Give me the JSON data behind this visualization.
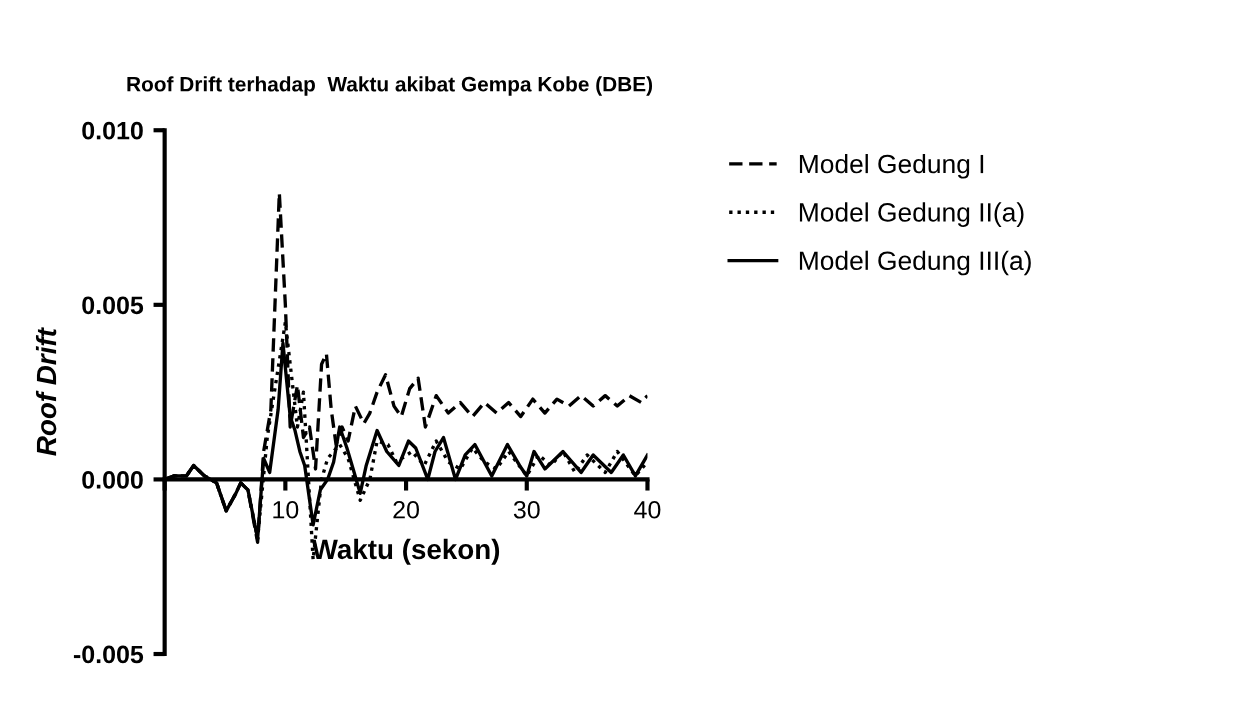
{
  "chart_data": {
    "type": "line",
    "title": "Roof Drift terhadap  Waktu akibat Gempa Kobe (DBE)",
    "xlabel": "Waktu (sekon)",
    "ylabel": "Roof Drift",
    "xlim": [
      0,
      40
    ],
    "xticks": [
      {
        "value": 0,
        "label": null
      },
      10,
      20,
      30,
      40
    ],
    "ylim": [
      -0.005,
      0.01
    ],
    "yticks": [
      {
        "value": -0.005,
        "label": "-0.005"
      },
      {
        "value": 0.0,
        "label": "0.000"
      },
      {
        "value": 0.005,
        "label": "0.005"
      },
      {
        "value": 0.01,
        "label": "0.010"
      }
    ],
    "grid": false,
    "legend": "top right",
    "marker": "none",
    "series": [
      {
        "name": "Model Gedung I",
        "color": "#000000",
        "line_style": "dashed",
        "x": [
          0,
          0.8,
          1.2,
          1.8,
          2.4,
          3.3,
          4.3,
          5.1,
          5.9,
          6.3,
          6.9,
          7.7,
          8.2,
          8.8,
          9.5,
          10.0,
          10.4,
          11.0,
          11.5,
          12.0,
          12.5,
          13.0,
          13.4,
          13.8,
          14.2,
          14.7,
          15.2,
          15.8,
          16.5,
          17.0,
          17.6,
          18.3,
          19.0,
          19.6,
          20.3,
          21.0,
          21.6,
          22.5,
          23.5,
          24.5,
          25.5,
          26.5,
          27.5,
          28.5,
          29.5,
          30.5,
          31.5,
          32.5,
          33.5,
          34.5,
          35.5,
          36.5,
          37.5,
          38.5,
          39.5,
          40
        ],
        "values": [
          0,
          0.0001,
          0.0001,
          0.0001,
          0.0004,
          0.0001,
          -0.0001,
          -0.0009,
          -0.0004,
          -0.0001,
          -0.0003,
          -0.0018,
          0.0008,
          0.002,
          0.0082,
          0.005,
          0.0015,
          0.0027,
          0.0012,
          0.0015,
          0.0003,
          0.0033,
          0.0036,
          0.002,
          0.001,
          0.0015,
          0.0011,
          0.0021,
          0.0016,
          0.0019,
          0.0025,
          0.003,
          0.0021,
          0.0018,
          0.0026,
          0.0029,
          0.0015,
          0.0024,
          0.0019,
          0.0022,
          0.0018,
          0.0022,
          0.0019,
          0.0022,
          0.0018,
          0.0023,
          0.0019,
          0.0023,
          0.0021,
          0.0024,
          0.0021,
          0.0024,
          0.0021,
          0.0024,
          0.0022,
          0.0024
        ]
      },
      {
        "name": "Model Gedung II(a)",
        "color": "#000000",
        "line_style": "dotted",
        "x": [
          0,
          0.8,
          1.2,
          1.8,
          2.4,
          3.3,
          4.3,
          5.1,
          5.9,
          6.3,
          6.9,
          7.7,
          8.5,
          10.0,
          11.0,
          11.5,
          12.3,
          13.0,
          13.5,
          14.5,
          15.2,
          16.2,
          17.0,
          17.6,
          18.5,
          19.2,
          20.5,
          21.5,
          22.5,
          23.5,
          24.5,
          25.5,
          26.5,
          27.5,
          28.5,
          30.0,
          31.0,
          32.0,
          33.0,
          34.0,
          35.0,
          36.5,
          37.5,
          39.0,
          40
        ],
        "values": [
          0,
          0.0001,
          0.0001,
          0.0001,
          0.0004,
          0.0001,
          -0.0001,
          -0.0009,
          -0.0004,
          -0.0001,
          -0.0003,
          -0.0017,
          0.0012,
          0.0045,
          0.0015,
          0.0025,
          -0.0023,
          0.0,
          0.0006,
          0.001,
          0.0006,
          -0.0006,
          0.0,
          0.0011,
          0.001,
          0.0005,
          0.0008,
          0.0004,
          0.0011,
          0.0005,
          0.0003,
          0.0009,
          0.0005,
          0.0003,
          0.0008,
          0.0001,
          0.0007,
          0.0004,
          0.0008,
          0.0002,
          0.0007,
          0.0002,
          0.0008,
          0.0001,
          0.0005
        ]
      },
      {
        "name": "Model Gedung III(a)",
        "color": "#000000",
        "line_style": "solid",
        "x": [
          0,
          0.8,
          1.2,
          1.8,
          2.4,
          3.3,
          4.3,
          5.1,
          5.9,
          6.3,
          6.9,
          7.7,
          8.2,
          8.7,
          9.4,
          9.8,
          10.4,
          10.8,
          11.2,
          11.6,
          12.3,
          12.9,
          13.5,
          14.0,
          14.5,
          15.1,
          15.7,
          16.2,
          16.7,
          17.6,
          18.4,
          19.4,
          20.2,
          20.8,
          21.8,
          22.4,
          23.1,
          24.1,
          24.9,
          25.7,
          27.1,
          28.4,
          29.4,
          30.0,
          30.6,
          31.5,
          33.0,
          34.5,
          35.5,
          37.0,
          38.0,
          39.0,
          40
        ],
        "values": [
          0,
          0.0001,
          0.0001,
          0.0001,
          0.0004,
          0.0001,
          -0.0001,
          -0.0009,
          -0.0004,
          -0.0001,
          -0.0003,
          -0.0017,
          0.0006,
          0.0002,
          0.002,
          0.0039,
          0.0018,
          0.0014,
          0.0008,
          0.0004,
          -0.0013,
          -0.0003,
          0.0,
          0.0005,
          0.0015,
          0.0009,
          0.0002,
          -0.0004,
          0.0004,
          0.0014,
          0.0008,
          0.0004,
          0.0011,
          0.0009,
          0.0,
          0.0008,
          0.0012,
          0.0,
          0.0007,
          0.001,
          0.0001,
          0.001,
          0.0004,
          0.0001,
          0.0008,
          0.0003,
          0.0008,
          0.0002,
          0.0007,
          0.0002,
          0.0007,
          0.0001,
          0.0007
        ]
      }
    ]
  }
}
